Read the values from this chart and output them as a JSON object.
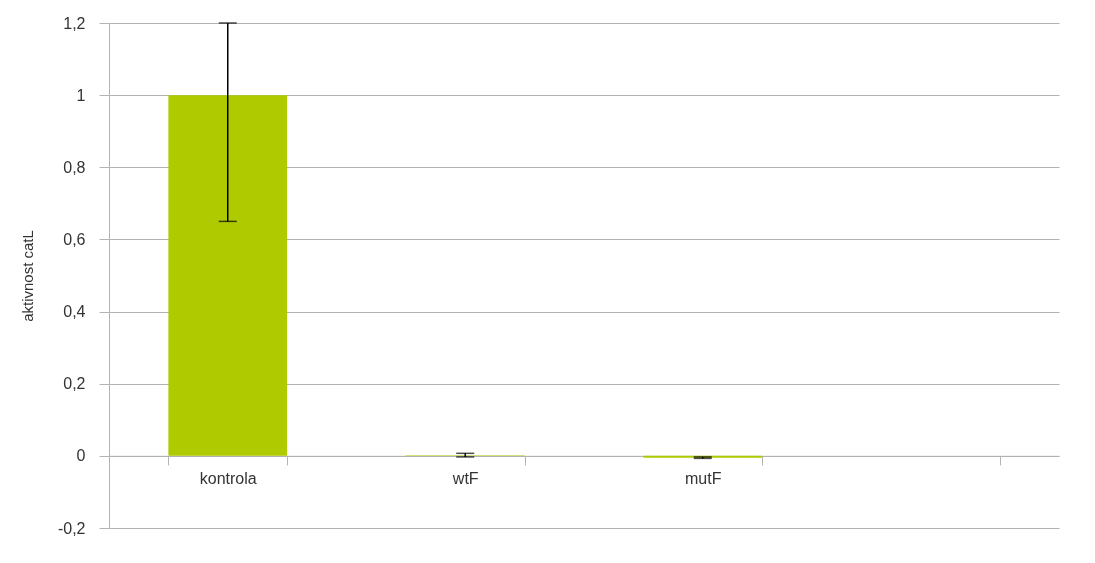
{
  "chart_data": {
    "type": "bar",
    "ylabel": "aktivnost catL",
    "categories": [
      "kontrola",
      "wtF",
      "mutF",
      null
    ],
    "values": [
      1,
      0.002,
      -0.005,
      null
    ],
    "color": "#afcb00",
    "errors": [
      [
        0.65,
        1.2
      ],
      0.005,
      0.002,
      null
    ],
    "ylim": [
      -0.2,
      1.2
    ],
    "yticks": [
      {
        "value": -0.2,
        "label": "-0,2"
      },
      0,
      {
        "value": 0.2,
        "label": "0,2"
      },
      {
        "value": 0.4,
        "label": "0,4"
      },
      {
        "value": 0.6,
        "label": "0,6"
      },
      {
        "value": 0.8,
        "label": "0,8"
      },
      1,
      {
        "value": 1.2,
        "label": "1,2"
      }
    ],
    "grid": "y"
  }
}
